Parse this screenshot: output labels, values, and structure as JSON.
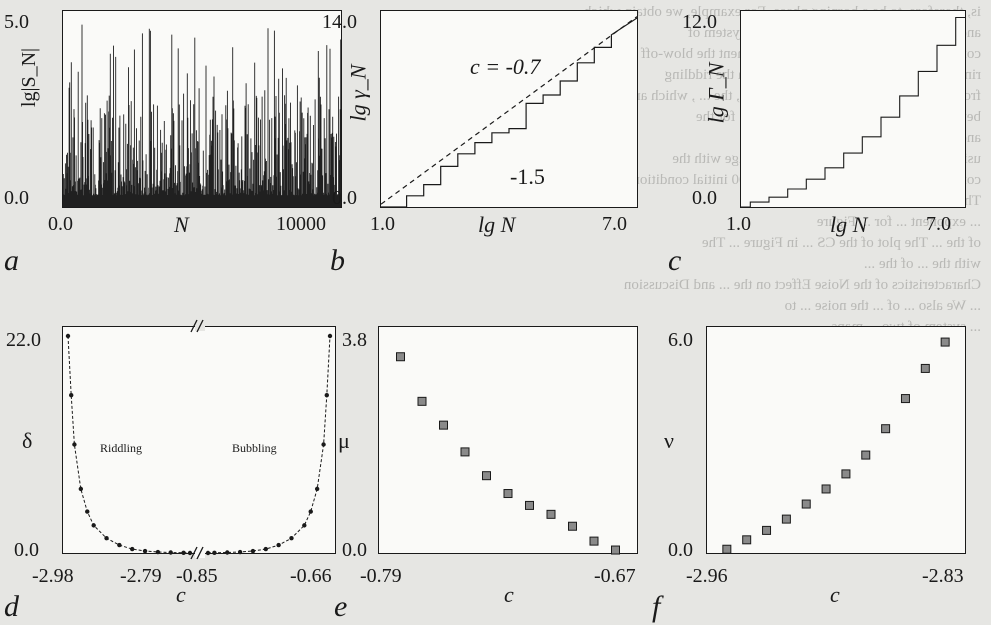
{
  "background_text": [
    "is, therefore, to be a borning phase. For example, we obtain  which",
    "and then get the second, ... for which a system of",
    "constituted upon the moving phase moment the blow-off effect",
    "ring in the phase, its cut-off ... the  which the riddling",
    "from the phase ... of the ... In the pattern, the ... , which are",
    "between the CS and ... The plot of the ... for the",
    "and then ... the ... so the",
    "using the ... ending rule and ... in the range  with the",
    "constant process, ... an ensemble of 1,000 initial conditions on the diagonal",
    "This ... with ... is referred to as the",
    "... exponent ... for ... Figure",
    "of the ... The plot of the CS ... in Figure ... The",
    "with the ... of the ..."
  ],
  "section_heading": "Characteristics of the Noise Effect on the ... and Discussion",
  "bottom_text": [
    "... We also ... of ... the noise ... to",
    "... system of two ... maps."
  ],
  "panels": {
    "a": {
      "letter": "a",
      "ylabel": "lg|S_N|",
      "xlabel": "N",
      "y_ticks": [
        "5.0",
        "0.0"
      ],
      "x_ticks": [
        "0.0",
        "10000"
      ]
    },
    "b": {
      "letter": "b",
      "ylabel": "lg γ_N",
      "xlabel": "lg N",
      "y_ticks": [
        "14.0",
        "0.0"
      ],
      "x_ticks": [
        "1.0",
        "7.0"
      ],
      "annotation_c": "c = -0.7",
      "annotation_slope": "-1.5"
    },
    "c": {
      "letter": "c",
      "ylabel": "lg Γ_N",
      "xlabel": "lg N",
      "y_ticks": [
        "12.0",
        "0.0"
      ],
      "x_ticks": [
        "1.0",
        "7.0"
      ]
    },
    "d": {
      "letter": "d",
      "ylabel": "δ",
      "xlabel": "c",
      "y_ticks": [
        "22.0",
        "0.0"
      ],
      "x_ticks": [
        "-2.98",
        "-2.79",
        "-0.85",
        "-0.66"
      ],
      "region_left": "Riddling",
      "region_right": "Bubbling"
    },
    "e": {
      "letter": "e",
      "ylabel": "μ",
      "xlabel": "c",
      "y_ticks": [
        "3.8",
        "0.0"
      ],
      "x_ticks": [
        "-0.79",
        "-0.67"
      ]
    },
    "f": {
      "letter": "f",
      "ylabel": "ν",
      "xlabel": "c",
      "y_ticks": [
        "6.0",
        "0.0"
      ],
      "x_ticks": [
        "-2.96",
        "-2.83"
      ]
    }
  },
  "chart_data": [
    {
      "type": "bar",
      "panel": "a",
      "xlabel": "N",
      "ylabel": "lg|S_N|",
      "xlim": [
        0,
        12000
      ],
      "ylim": [
        0,
        5.0
      ],
      "note": "dense noisy spike series"
    },
    {
      "type": "line",
      "panel": "b",
      "xlabel": "lg N",
      "ylabel": "lg γ_N",
      "xlim": [
        1.0,
        7.0
      ],
      "ylim": [
        0,
        14.0
      ],
      "series": [
        {
          "x": [
            1.0,
            1.6,
            1.6,
            2.0,
            2.0,
            2.4,
            2.4,
            2.8,
            2.8,
            3.2,
            3.2,
            3.6,
            3.6,
            4.0,
            4.0,
            4.4,
            4.4,
            4.8,
            4.8,
            5.2,
            5.2,
            5.6,
            5.6,
            6.0,
            6.0,
            6.4,
            6.4,
            7.0
          ],
          "y": [
            0.0,
            0.0,
            0.8,
            0.8,
            1.6,
            1.6,
            2.9,
            2.9,
            3.8,
            3.8,
            4.6,
            4.6,
            5.3,
            5.3,
            5.6,
            5.6,
            7.4,
            7.4,
            8.0,
            8.0,
            9.0,
            9.0,
            10.3,
            10.3,
            11.4,
            11.4,
            12.3,
            13.5
          ]
        },
        {
          "x": [
            1.0,
            7.0
          ],
          "y": [
            0.2,
            13.6
          ]
        }
      ]
    },
    {
      "type": "line",
      "panel": "c",
      "xlabel": "lg N",
      "ylabel": "lg Γ_N",
      "xlim": [
        1.0,
        7.0
      ],
      "ylim": [
        0,
        12.0
      ],
      "series": [
        {
          "x": [
            1.0,
            1.5,
            2.0,
            2.5,
            3.0,
            3.5,
            4.0,
            4.5,
            5.0,
            5.5,
            6.0,
            6.5,
            7.0
          ],
          "y": [
            0.0,
            0.3,
            0.6,
            1.1,
            1.7,
            2.4,
            3.3,
            4.3,
            5.5,
            6.8,
            8.3,
            9.9,
            11.6
          ]
        }
      ]
    },
    {
      "type": "line",
      "panel": "d",
      "xlabel": "c",
      "ylabel": "δ",
      "ylim": [
        0,
        22.0
      ],
      "series": [
        {
          "name": "Riddling",
          "x": [
            -2.98,
            -2.975,
            -2.97,
            -2.96,
            -2.95,
            -2.94,
            -2.92,
            -2.9,
            -2.88,
            -2.86,
            -2.84,
            -2.82,
            -2.8,
            -2.79
          ],
          "y": [
            22.0,
            16.0,
            11.0,
            6.5,
            4.2,
            2.8,
            1.5,
            0.8,
            0.4,
            0.2,
            0.1,
            0.05,
            0.02,
            0.0
          ]
        },
        {
          "name": "Bubbling",
          "x": [
            -0.85,
            -0.84,
            -0.82,
            -0.8,
            -0.78,
            -0.76,
            -0.74,
            -0.72,
            -0.7,
            -0.69,
            -0.68,
            -0.67,
            -0.665,
            -0.66
          ],
          "y": [
            0.0,
            0.02,
            0.05,
            0.1,
            0.2,
            0.4,
            0.8,
            1.5,
            2.8,
            4.2,
            6.5,
            11.0,
            16.0,
            22.0
          ]
        }
      ]
    },
    {
      "type": "scatter",
      "panel": "e",
      "xlabel": "c",
      "ylabel": "μ",
      "xlim": [
        -0.79,
        -0.67
      ],
      "ylim": [
        0,
        3.8
      ],
      "x": [
        -0.78,
        -0.77,
        -0.76,
        -0.75,
        -0.74,
        -0.73,
        -0.72,
        -0.71,
        -0.7,
        -0.69,
        -0.68
      ],
      "y": [
        3.3,
        2.55,
        2.15,
        1.7,
        1.3,
        1.0,
        0.8,
        0.65,
        0.45,
        0.2,
        0.05
      ]
    },
    {
      "type": "scatter",
      "panel": "f",
      "xlabel": "c",
      "ylabel": "ν",
      "xlim": [
        -2.96,
        -2.83
      ],
      "ylim": [
        0,
        6.0
      ],
      "x": [
        -2.95,
        -2.94,
        -2.93,
        -2.92,
        -2.91,
        -2.9,
        -2.89,
        -2.88,
        -2.87,
        -2.86,
        -2.85,
        -2.84
      ],
      "y": [
        0.1,
        0.35,
        0.6,
        0.9,
        1.3,
        1.7,
        2.1,
        2.6,
        3.3,
        4.1,
        4.9,
        5.6
      ]
    }
  ]
}
